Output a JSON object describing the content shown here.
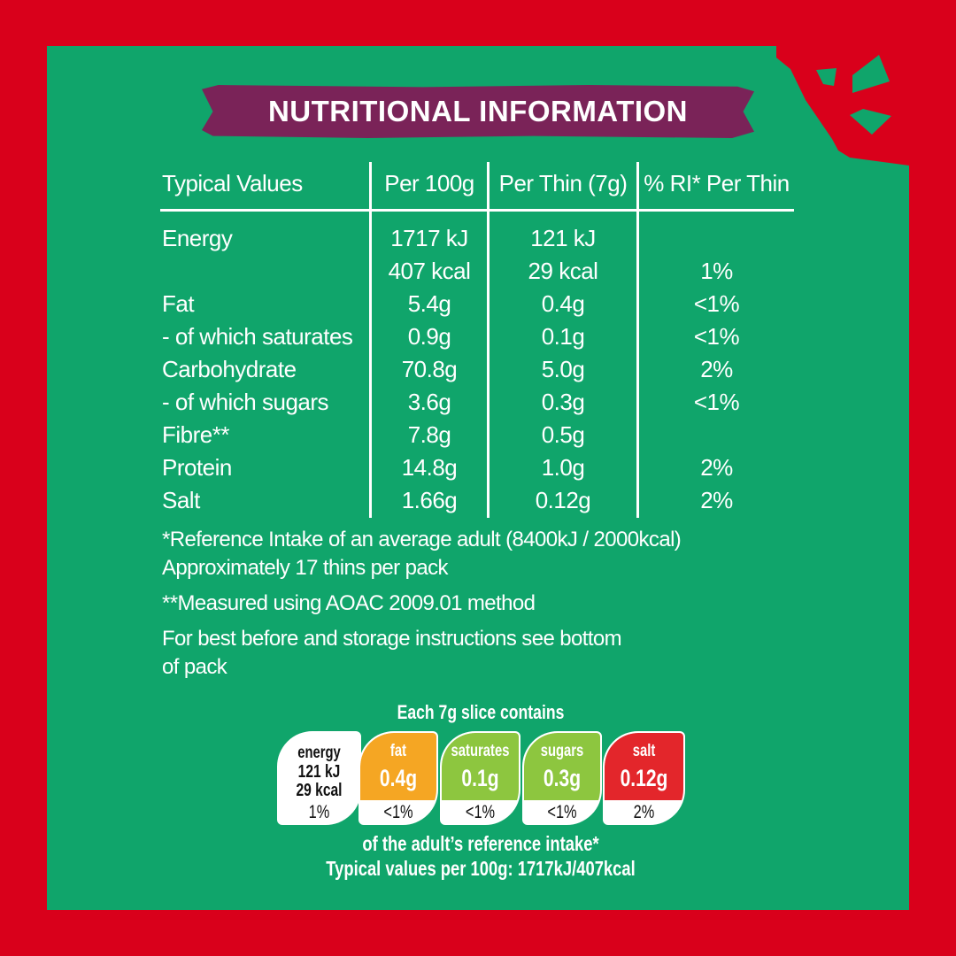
{
  "title": "NUTRITIONAL INFORMATION",
  "colors": {
    "border": "#d9001b",
    "panel": "#10a56b",
    "banner": "#7a2358",
    "fat": "#f5a623",
    "saturates": "#8dc63f",
    "sugars": "#8dc63f",
    "salt": "#e3262b"
  },
  "table": {
    "headers": [
      "Typical Values",
      "Per 100g",
      "Per Thin (7g)",
      "% RI* Per Thin"
    ],
    "rows": [
      [
        "Energy",
        "1717 kJ",
        "121 kJ",
        ""
      ],
      [
        "",
        "407 kcal",
        "29 kcal",
        "1%"
      ],
      [
        "Fat",
        "5.4g",
        "0.4g",
        "<1%"
      ],
      [
        "- of which saturates",
        "0.9g",
        "0.1g",
        "<1%"
      ],
      [
        "Carbohydrate",
        "70.8g",
        "5.0g",
        "2%"
      ],
      [
        "- of which sugars",
        "3.6g",
        "0.3g",
        "<1%"
      ],
      [
        "Fibre**",
        "7.8g",
        "0.5g",
        ""
      ],
      [
        "Protein",
        "14.8g",
        "1.0g",
        "2%"
      ],
      [
        "Salt",
        "1.66g",
        "0.12g",
        "2%"
      ]
    ]
  },
  "footnotes": [
    "*Reference Intake of an average adult (8400kJ / 2000kcal)",
    "Approximately 17 thins per pack",
    "**Measured using AOAC 2009.01 method",
    "For best before and storage instructions see bottom",
    "of pack"
  ],
  "traffic": {
    "heading": "Each 7g slice contains",
    "energy": {
      "label": "energy",
      "kj": "121 kJ",
      "kcal": "29 kcal",
      "pct": "1%"
    },
    "items": [
      {
        "label": "fat",
        "value": "0.4g",
        "pct": "<1%",
        "level": "medium"
      },
      {
        "label": "saturates",
        "value": "0.1g",
        "pct": "<1%",
        "level": "low"
      },
      {
        "label": "sugars",
        "value": "0.3g",
        "pct": "<1%",
        "level": "low"
      },
      {
        "label": "salt",
        "value": "0.12g",
        "pct": "2%",
        "level": "high"
      }
    ],
    "footer1": "of the adult’s reference intake*",
    "footer2": "Typical values per 100g: 1717kJ/407kcal"
  }
}
